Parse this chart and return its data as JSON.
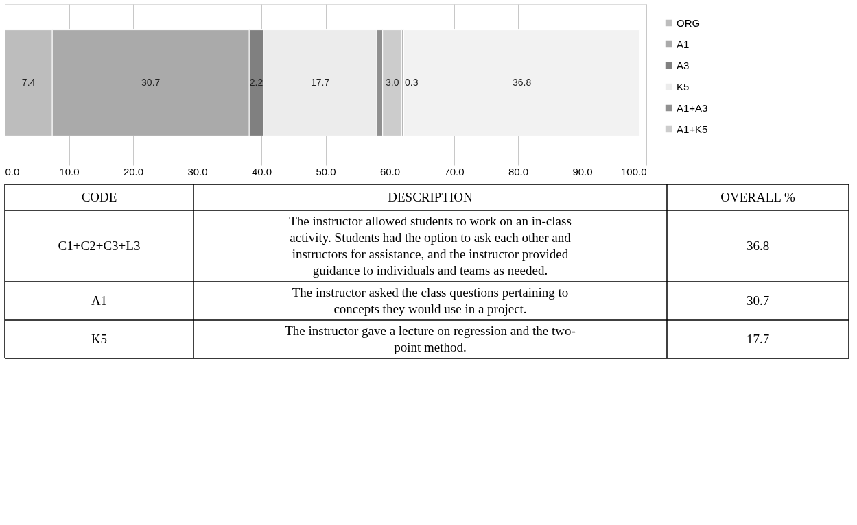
{
  "chart_data": [
    {
      "type": "bar",
      "orientation": "horizontal",
      "stacked": true,
      "categories": [
        null
      ],
      "series": [
        {
          "name": "ORG",
          "color": "#bdbdbd",
          "values": [
            7.4
          ],
          "value_labels": [
            "7.4"
          ]
        },
        {
          "name": "A1",
          "color": "#aaaaaa",
          "values": [
            30.7
          ],
          "value_labels": [
            "30.7"
          ]
        },
        {
          "name": "A3",
          "color": "#808080",
          "values": [
            2.2
          ],
          "value_labels": [
            "2.2"
          ]
        },
        {
          "name": "K5",
          "color": "#ececec",
          "values": [
            17.7
          ],
          "value_labels": [
            "17.7"
          ]
        },
        {
          "name": "A1+A3",
          "color": "#909090",
          "values": [
            0.9
          ],
          "value_labels": [
            null
          ]
        },
        {
          "name": "A1+K5",
          "color": "#cccccc",
          "values": [
            3.0
          ],
          "value_labels": [
            "3.0"
          ]
        },
        {
          "color": "#a0a0a0",
          "values": [
            0.3
          ],
          "value_labels": [
            "0.3"
          ]
        },
        {
          "color": "#f2f2f2",
          "values": [
            36.8
          ],
          "value_labels": [
            "36.8"
          ]
        }
      ],
      "xlim": [
        0,
        100
      ],
      "xticks": [
        {
          "value": 0,
          "label": "0.0"
        },
        {
          "value": 10,
          "label": "10.0"
        },
        {
          "value": 20,
          "label": "20.0"
        },
        {
          "value": 30,
          "label": "30.0"
        },
        {
          "value": 40,
          "label": "40.0"
        },
        {
          "value": 50,
          "label": "50.0"
        },
        {
          "value": 60,
          "label": "60.0"
        },
        {
          "value": 70,
          "label": "70.0"
        },
        {
          "value": 80,
          "label": "80.0"
        },
        {
          "value": 90,
          "label": "90.0"
        },
        {
          "value": 100,
          "label": "100.0"
        }
      ],
      "grid": "x",
      "legend": "right"
    },
    {
      "type": "other",
      "annotations": [
        "CODE",
        "DESCRIPTION",
        "OVERALL %",
        "C1+C2+C3+L3",
        "The instructor allowed students to work on an in-class activity. Students had the option to ask each other and instructors for assistance, and the instructor provided guidance to individuals and teams as needed.",
        "36.8",
        "A1",
        "The instructor asked the class questions pertaining to concepts they would use in a project.",
        "30.7",
        "K5",
        "The instructor gave a lecture on regression and the two-point method.",
        "17.7"
      ]
    }
  ]
}
